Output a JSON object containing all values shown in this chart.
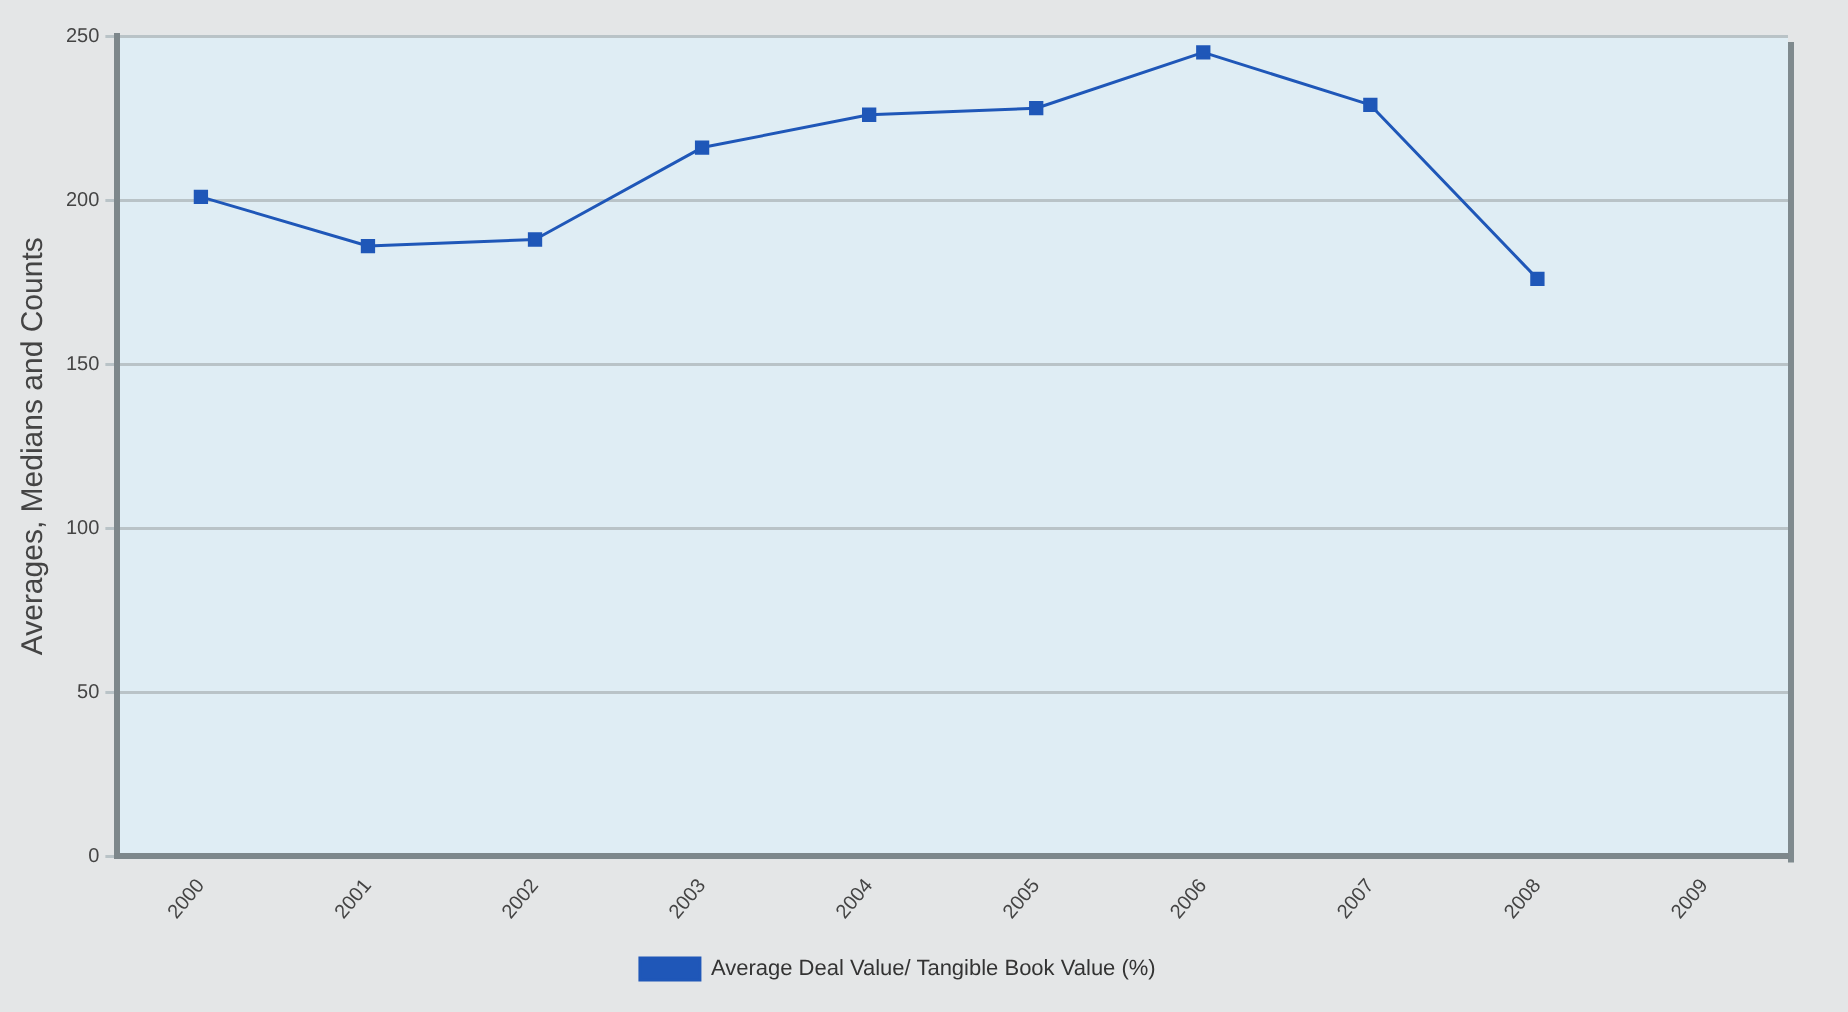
{
  "chart_data": {
    "type": "line",
    "ylabel": "Averages, Medians and Counts",
    "categories": [
      "2000",
      "2001",
      "2002",
      "2003",
      "2004",
      "2005",
      "2006",
      "2007",
      "2008",
      "2009"
    ],
    "series": [
      {
        "name": "Average Deal Value/ Tangible Book Value (%)",
        "color": "#1f57b8",
        "values": [
          201,
          186,
          188,
          216,
          226,
          228,
          245,
          229,
          176,
          null
        ]
      }
    ],
    "ylim": [
      0,
      250
    ],
    "yticks": [
      0,
      50,
      100,
      150,
      200,
      250
    ],
    "grid": "y",
    "legend": "bottom",
    "marker": "square",
    "line_style": "solid"
  }
}
